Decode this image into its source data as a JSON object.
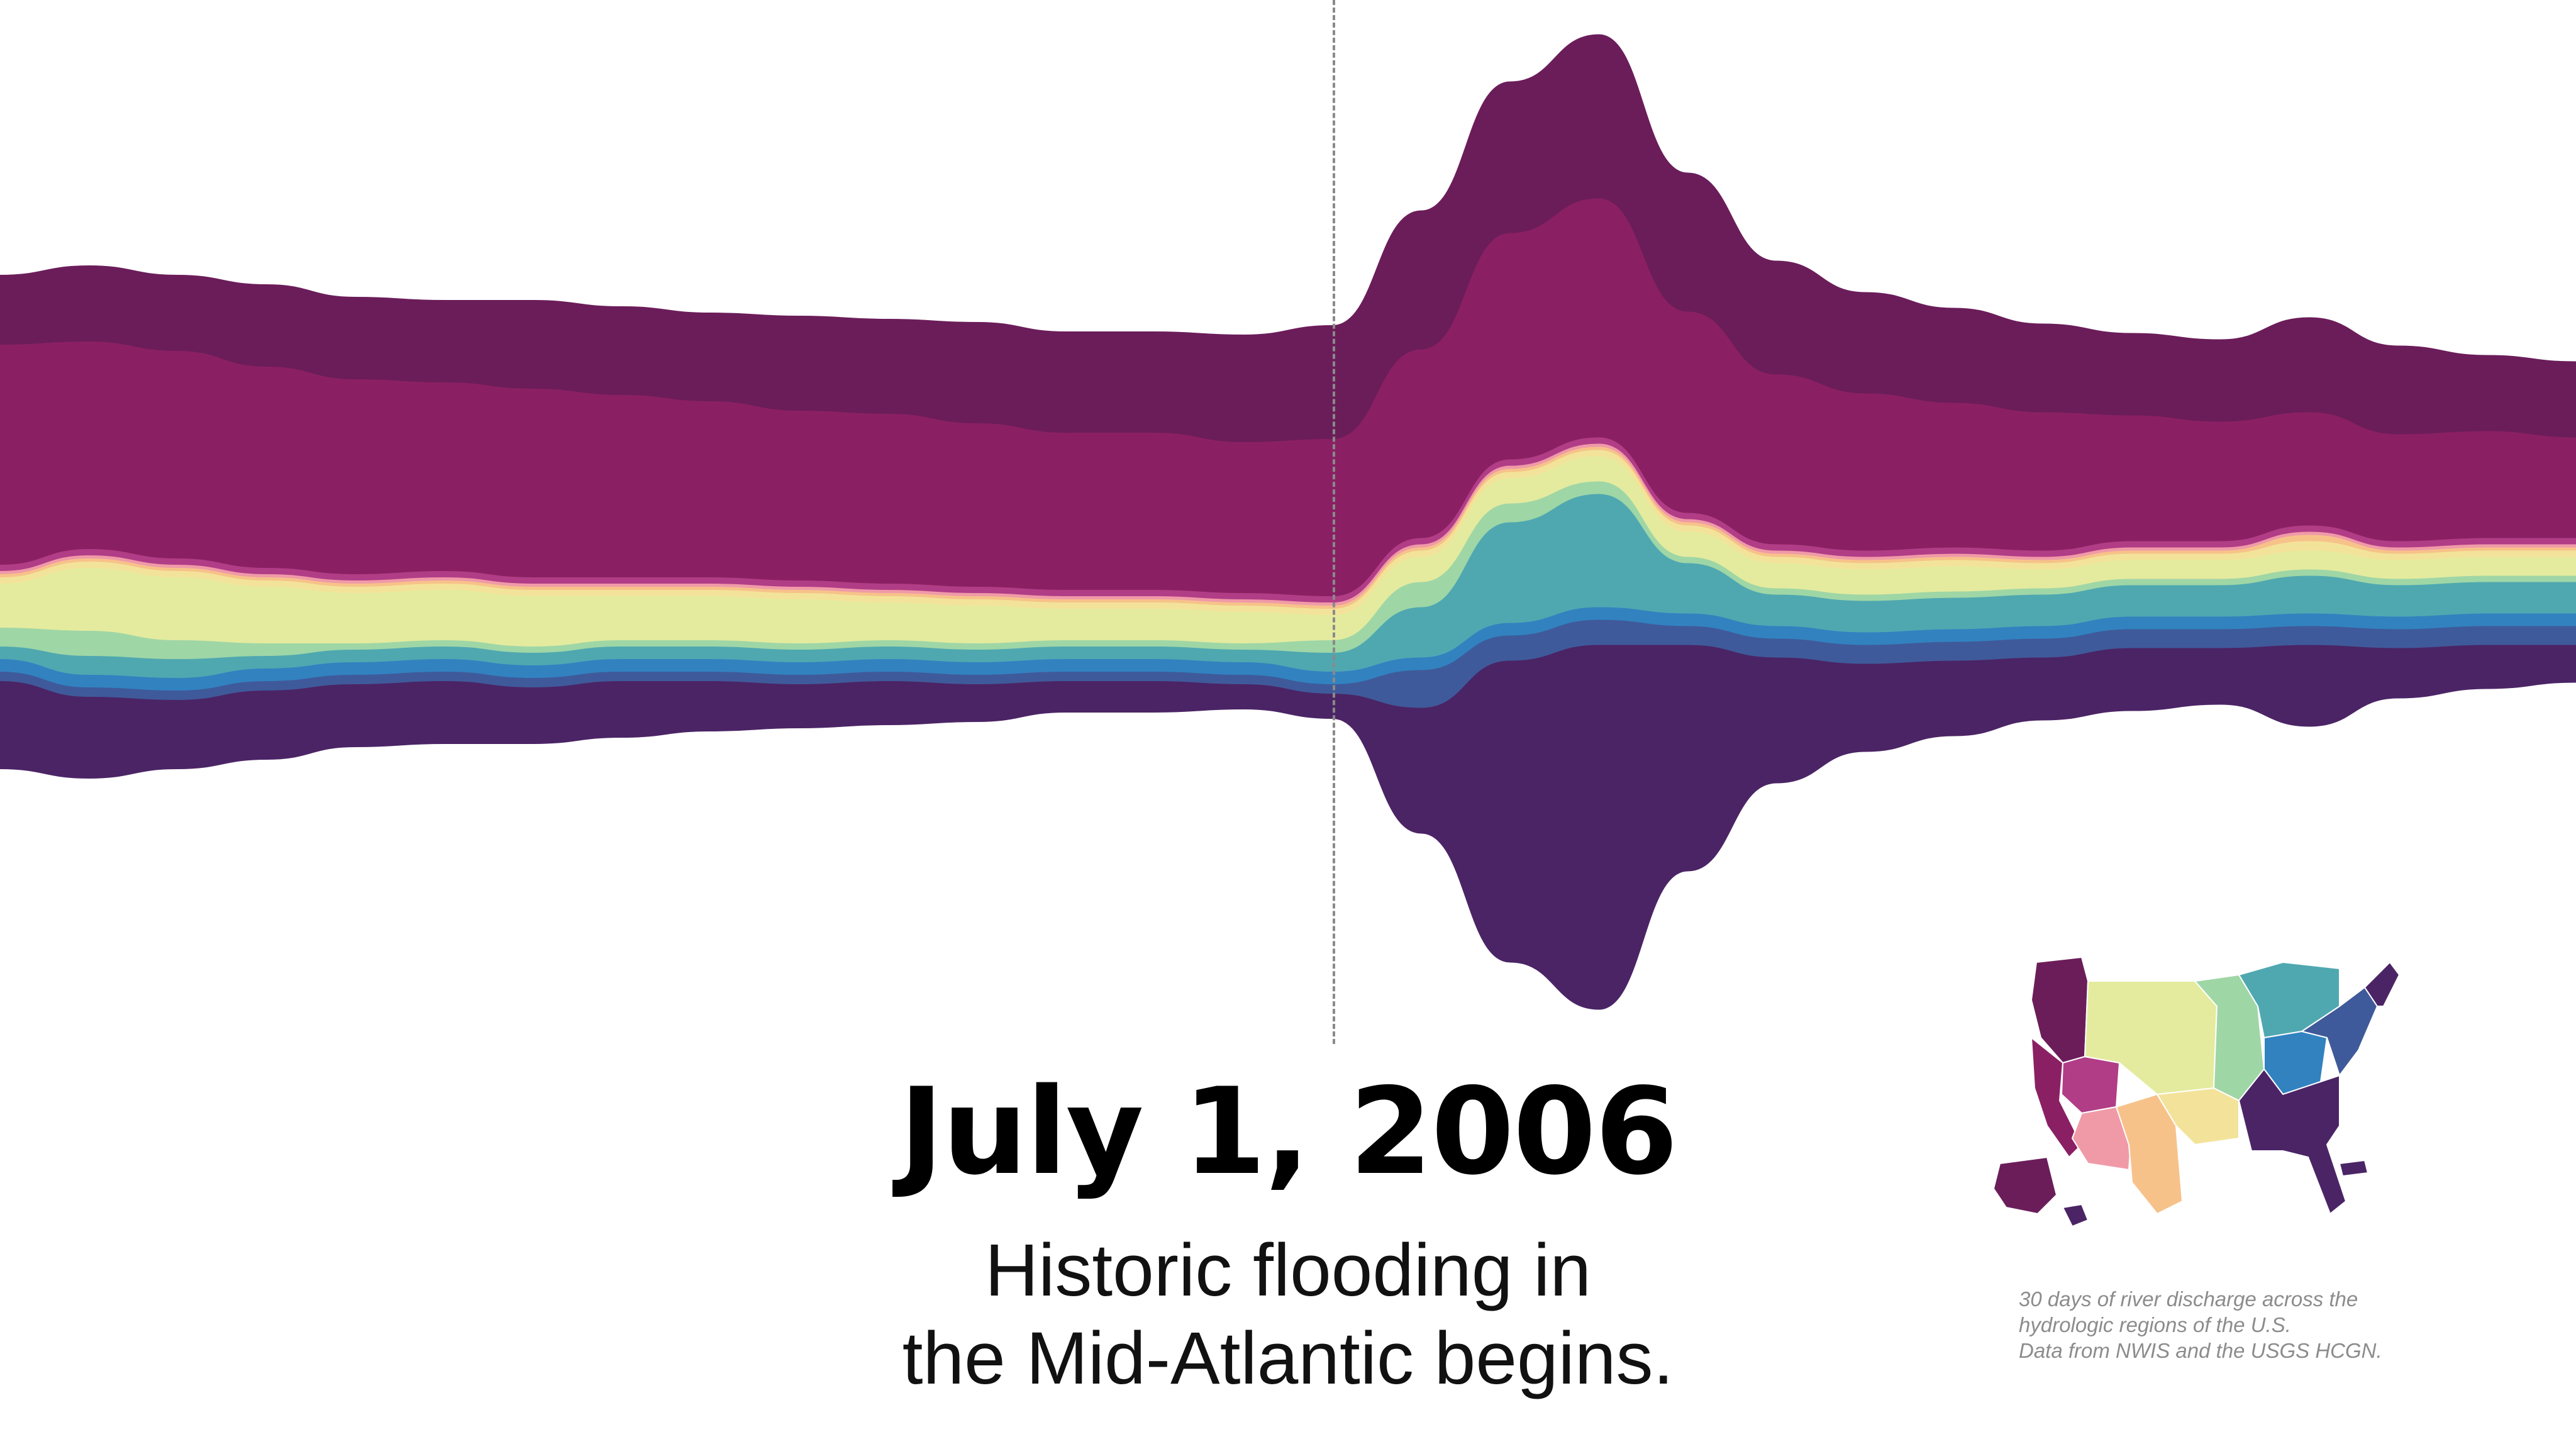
{
  "headline": {
    "date": "July 1, 2006",
    "caption_line1": "Historic flooding in",
    "caption_line2": "the Mid-Atlantic begins."
  },
  "source_note": {
    "line1": "30 days of river discharge across the",
    "line2": "hydrologic regions of the U.S.",
    "line3": "Data from NWIS and the USGS HCGN."
  },
  "legend_map": {
    "icon": "us-hydrologic-regions-map-icon",
    "region_colors": [
      "#6b1d5a",
      "#8a2063",
      "#b13d86",
      "#f09aa8",
      "#f7c28a",
      "#f3e39a",
      "#e4eb9e",
      "#9fd6a6",
      "#4fa8b0",
      "#3282c0",
      "#3f5a9a",
      "#4b2466"
    ]
  },
  "chart_data": {
    "type": "area",
    "stacked": true,
    "baseline": "wiggle-streamgraph",
    "title": "",
    "xlabel": "",
    "ylabel": "",
    "axes_visible": false,
    "grid": false,
    "event_marker": {
      "day": 16,
      "label": "July 1, 2006"
    },
    "x": [
      1,
      2,
      3,
      4,
      5,
      6,
      7,
      8,
      9,
      10,
      11,
      12,
      13,
      14,
      15,
      16,
      17,
      18,
      19,
      20,
      21,
      22,
      23,
      24,
      25,
      26,
      27,
      28,
      29,
      30
    ],
    "series": [
      {
        "color": "#4b2466",
        "values": [
          14,
          13,
          11,
          11,
          10,
          10,
          9,
          9,
          8,
          7,
          7,
          6,
          5,
          5,
          4,
          4,
          20,
          48,
          58,
          36,
          20,
          14,
          12,
          10,
          10,
          9,
          13,
          8,
          7,
          6
        ]
      },
      {
        "color": "#3f5a9a",
        "values": [
          1.5,
          1.5,
          1.5,
          1.5,
          1.5,
          1.5,
          1.5,
          1.5,
          1.5,
          1.5,
          1.5,
          1.5,
          1.5,
          1.5,
          1.5,
          1.5,
          6,
          4,
          4,
          3,
          3,
          3,
          3,
          3,
          3,
          3,
          3,
          3,
          3,
          3
        ]
      },
      {
        "color": "#3282c0",
        "values": [
          2,
          2,
          2,
          2,
          2,
          2,
          2,
          2,
          2,
          2,
          2,
          2,
          2,
          2,
          2,
          2,
          2,
          2,
          2,
          2,
          2,
          2,
          2,
          2,
          2,
          2,
          2,
          2,
          2,
          2
        ]
      },
      {
        "color": "#4fa8b0",
        "values": [
          2,
          3,
          3,
          2,
          2,
          2,
          2,
          2,
          2,
          2,
          2,
          2,
          2,
          2,
          2,
          3,
          8,
          16,
          18,
          8,
          5,
          5,
          5,
          5,
          5,
          5,
          6,
          5,
          5,
          5
        ]
      },
      {
        "color": "#9fd6a6",
        "values": [
          3,
          4,
          3,
          2,
          1,
          1,
          1,
          1,
          1,
          1,
          1,
          1,
          1,
          1,
          1,
          2,
          4,
          3,
          2,
          1,
          1,
          1,
          1,
          1,
          1,
          1,
          1,
          1,
          1,
          1
        ]
      },
      {
        "color": "#e4eb9e",
        "values": [
          7,
          10,
          10,
          9,
          8,
          8,
          8,
          7,
          7,
          7,
          6,
          6,
          5,
          5,
          5,
          4,
          4,
          4,
          4,
          4,
          4,
          4,
          4,
          3,
          3,
          3,
          3,
          3,
          3,
          3
        ]
      },
      {
        "color": "#f3e39a",
        "values": [
          1,
          1,
          1,
          1,
          1,
          1,
          1,
          1,
          1,
          1,
          1,
          1,
          1,
          1,
          1,
          1,
          1,
          1,
          1,
          1,
          1,
          1,
          1,
          1,
          1,
          1,
          1.5,
          1,
          1,
          1
        ]
      },
      {
        "color": "#f7c28a",
        "values": [
          0.5,
          0.5,
          0.5,
          0.5,
          0.5,
          0.5,
          0.5,
          0.5,
          0.5,
          0.5,
          0.5,
          0.5,
          0.5,
          0.5,
          0.5,
          0.5,
          0.5,
          0.5,
          0.5,
          0.5,
          0.5,
          0.5,
          0.5,
          0.5,
          0.5,
          0.5,
          1,
          0.5,
          0.5,
          0.5
        ]
      },
      {
        "color": "#f09aa8",
        "values": [
          0.5,
          0.5,
          0.5,
          0.5,
          0.5,
          0.5,
          0.5,
          0.5,
          0.5,
          0.5,
          0.5,
          0.5,
          0.5,
          0.5,
          0.5,
          0.5,
          0.5,
          0.5,
          0.5,
          0.5,
          0.5,
          0.5,
          0.5,
          0.5,
          0.5,
          0.5,
          0.5,
          0.5,
          0.5,
          0.5
        ]
      },
      {
        "color": "#b13d86",
        "values": [
          1,
          1,
          1,
          1,
          1,
          1,
          1,
          1,
          1,
          1,
          1,
          1,
          1,
          1,
          1,
          1,
          1,
          1,
          1,
          1,
          1,
          1,
          1,
          1,
          1,
          1,
          1,
          1,
          1,
          1
        ]
      },
      {
        "color": "#8a2063",
        "values": [
          35,
          33,
          33,
          32,
          31,
          30,
          30,
          29,
          28,
          27,
          27,
          26,
          25,
          25,
          24,
          25,
          30,
          36,
          38,
          32,
          27,
          25,
          23,
          22,
          20,
          19,
          18,
          17,
          17,
          16
        ]
      },
      {
        "color": "#6b1d5a",
        "values": [
          11,
          12,
          12,
          13,
          13,
          13,
          14,
          14,
          14,
          15,
          15,
          16,
          16,
          16,
          17,
          18,
          22,
          24,
          26,
          22,
          18,
          16,
          15,
          14,
          13,
          13,
          15,
          14,
          12,
          12
        ]
      }
    ]
  }
}
